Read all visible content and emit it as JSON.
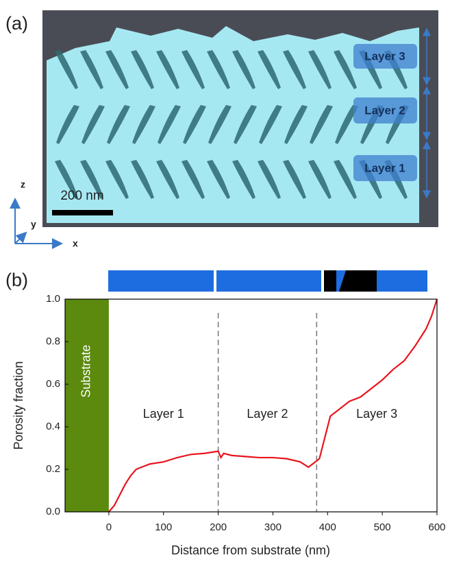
{
  "panel_a": {
    "label": "(a)",
    "layers": [
      "Layer 3",
      "Layer 2",
      "Layer 1"
    ],
    "scale_bar": "200 nm",
    "axes": [
      "z",
      "y",
      "x"
    ]
  },
  "chart_data": {
    "type": "line",
    "panel_label": "(b)",
    "xlabel": "Distance from substrate (nm)",
    "ylabel": "Porosity fraction",
    "xlim": [
      -80,
      600
    ],
    "xticks": [
      0,
      100,
      200,
      300,
      400,
      500,
      600
    ],
    "ylim": [
      0,
      1
    ],
    "yticks": [
      {
        "value": 0,
        "label": "0.0"
      },
      0.2,
      0.4,
      0.6,
      0.8,
      {
        "value": 1,
        "label": "1.0"
      }
    ],
    "shaded_region": {
      "label": "Substrate",
      "x": [
        -80,
        0
      ],
      "color": "#5b8a0e"
    },
    "vlines": [
      200,
      380
    ],
    "annotations": [
      "Layer 1",
      "Layer 2",
      "Layer 3"
    ],
    "series": [
      {
        "name": "Porosity",
        "color": "#e8141c",
        "x": [
          0,
          10,
          20,
          30,
          40,
          50,
          60,
          75,
          100,
          125,
          150,
          175,
          200,
          205,
          210,
          225,
          250,
          275,
          300,
          325,
          350,
          365,
          375,
          385,
          395,
          405,
          420,
          440,
          460,
          480,
          500,
          520,
          540,
          560,
          580,
          590,
          600
        ],
        "values": [
          0,
          0.03,
          0.08,
          0.13,
          0.17,
          0.2,
          0.21,
          0.225,
          0.235,
          0.255,
          0.27,
          0.275,
          0.285,
          0.255,
          0.275,
          0.265,
          0.26,
          0.255,
          0.255,
          0.25,
          0.235,
          0.21,
          0.23,
          0.25,
          0.35,
          0.45,
          0.48,
          0.52,
          0.54,
          0.58,
          0.62,
          0.67,
          0.71,
          0.78,
          0.86,
          0.92,
          1.0
        ]
      }
    ]
  }
}
